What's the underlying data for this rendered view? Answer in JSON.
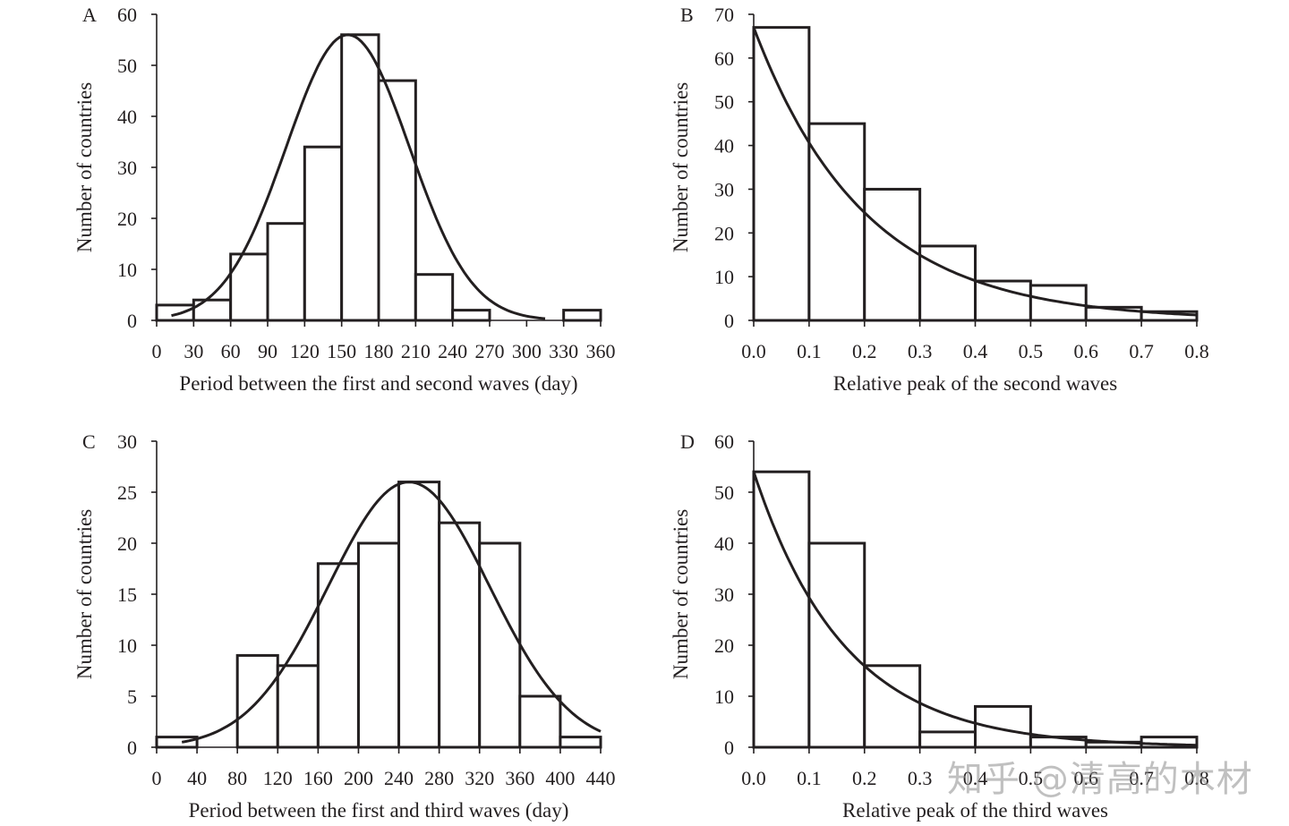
{
  "watermark": "知乎 @清高的木材",
  "chart_data": [
    {
      "panel": "A",
      "type": "bar",
      "title": "",
      "xlabel": "Period between the first and second waves (day)",
      "ylabel": "Number of countries",
      "bin_edges": [
        0,
        30,
        60,
        90,
        120,
        150,
        180,
        210,
        240,
        270,
        300,
        330,
        360
      ],
      "values": [
        3,
        4,
        13,
        19,
        34,
        56,
        47,
        9,
        2,
        0,
        0,
        2
      ],
      "xticks": [
        "0",
        "30",
        "60",
        "90",
        "120",
        "150",
        "180",
        "210",
        "240",
        "270",
        "300",
        "330",
        "360"
      ],
      "xlim": [
        0,
        360
      ],
      "ylim": [
        0,
        60
      ],
      "yticks": [
        "0",
        "10",
        "20",
        "30",
        "40",
        "50",
        "60"
      ],
      "fit": {
        "type": "normal",
        "mean": 155,
        "sd": 50,
        "peak": 56,
        "range": [
          12,
          315
        ]
      }
    },
    {
      "panel": "B",
      "type": "bar",
      "title": "",
      "xlabel": "Relative  peak of the second waves",
      "ylabel": "Number of countries",
      "bin_edges": [
        0.0,
        0.1,
        0.2,
        0.3,
        0.4,
        0.5,
        0.6,
        0.7,
        0.8
      ],
      "values": [
        67,
        45,
        30,
        17,
        9,
        8,
        3,
        2
      ],
      "xticks": [
        "0.0",
        "0.1",
        "0.2",
        "0.3",
        "0.4",
        "0.5",
        "0.6",
        "0.7",
        "0.8"
      ],
      "xlim": [
        0,
        0.8
      ],
      "ylim": [
        0,
        70
      ],
      "yticks": [
        "0",
        "10",
        "20",
        "30",
        "40",
        "50",
        "60",
        "70"
      ],
      "fit": {
        "type": "exponential",
        "a": 67,
        "rate": 5.0,
        "range": [
          0,
          0.8
        ]
      }
    },
    {
      "panel": "C",
      "type": "bar",
      "title": "",
      "xlabel": "Period between the first and third waves (day)",
      "ylabel": "Number of countries",
      "bin_edges": [
        0,
        40,
        80,
        120,
        160,
        200,
        240,
        280,
        320,
        360,
        400,
        440
      ],
      "values": [
        1,
        0,
        9,
        8,
        18,
        20,
        26,
        22,
        20,
        5,
        1
      ],
      "xticks": [
        "0",
        "40",
        "80",
        "120",
        "160",
        "200",
        "240",
        "280",
        "320",
        "360",
        "400",
        "440"
      ],
      "xlim": [
        0,
        440
      ],
      "ylim": [
        0,
        30
      ],
      "yticks": [
        "0",
        "5",
        "10",
        "15",
        "20",
        "25",
        "30"
      ],
      "fit": {
        "type": "normal",
        "mean": 250,
        "sd": 80,
        "peak": 26,
        "range": [
          25,
          440
        ]
      }
    },
    {
      "panel": "D",
      "type": "bar",
      "title": "",
      "xlabel": "Relative peak of the third waves",
      "ylabel": "Number of countries",
      "bin_edges": [
        0.0,
        0.1,
        0.2,
        0.3,
        0.4,
        0.5,
        0.6,
        0.7,
        0.8
      ],
      "values": [
        54,
        40,
        16,
        3,
        8,
        2,
        1,
        2
      ],
      "xticks": [
        "0.0",
        "0.1",
        "0.2",
        "0.3",
        "0.4",
        "0.5",
        "0.6",
        "0.7",
        "0.8"
      ],
      "xlim": [
        0,
        0.8
      ],
      "ylim": [
        0,
        60
      ],
      "yticks": [
        "0",
        "10",
        "20",
        "30",
        "40",
        "50",
        "60"
      ],
      "fit": {
        "type": "exponential",
        "a": 54,
        "rate": 6.1,
        "range": [
          0,
          0.8
        ]
      }
    }
  ]
}
